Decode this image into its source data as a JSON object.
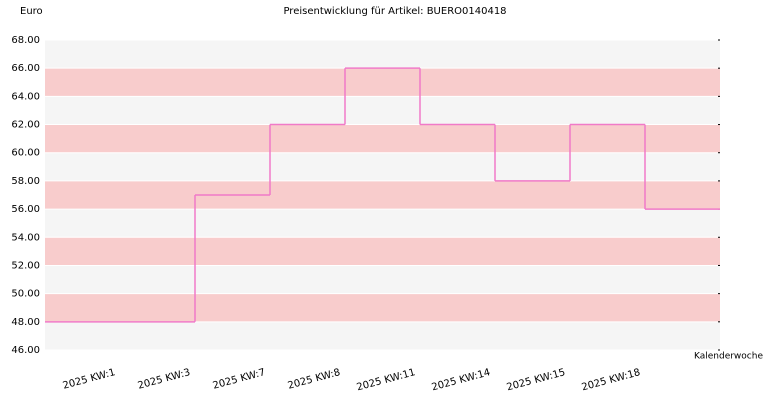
{
  "chart_data": {
    "type": "step-line",
    "title": "Preisentwicklung für Artikel: BUERO0140418",
    "y_label": "Euro",
    "x_label": "Kalenderwoche",
    "categories": [
      "2025 KW:1",
      "2025 KW:3",
      "2025 KW:7",
      "2025 KW:8",
      "2025 KW:11",
      "2025 KW:14",
      "2025 KW:15",
      "2025 KW:18"
    ],
    "values": [
      48,
      57,
      62,
      66,
      62,
      58,
      62,
      56
    ],
    "color": "#f07ac8",
    "band_colors": [
      "#f5f5f5",
      "#f8cccc"
    ],
    "ylim": [
      46,
      68
    ],
    "yticks": [
      {
        "value": 46,
        "label": "46.00"
      },
      {
        "value": 48,
        "label": "48.00"
      },
      {
        "value": 50,
        "label": "50.00"
      },
      {
        "value": 52,
        "label": "52.00"
      },
      {
        "value": 54,
        "label": "54.00"
      },
      {
        "value": 56,
        "label": "56.00"
      },
      {
        "value": 58,
        "label": "58.00"
      },
      {
        "value": 60,
        "label": "60.00"
      },
      {
        "value": 62,
        "label": "62.00"
      },
      {
        "value": 64,
        "label": "64.00"
      },
      {
        "value": 66,
        "label": "66.00"
      },
      {
        "value": 68,
        "label": "68.00"
      }
    ],
    "grid": true
  }
}
